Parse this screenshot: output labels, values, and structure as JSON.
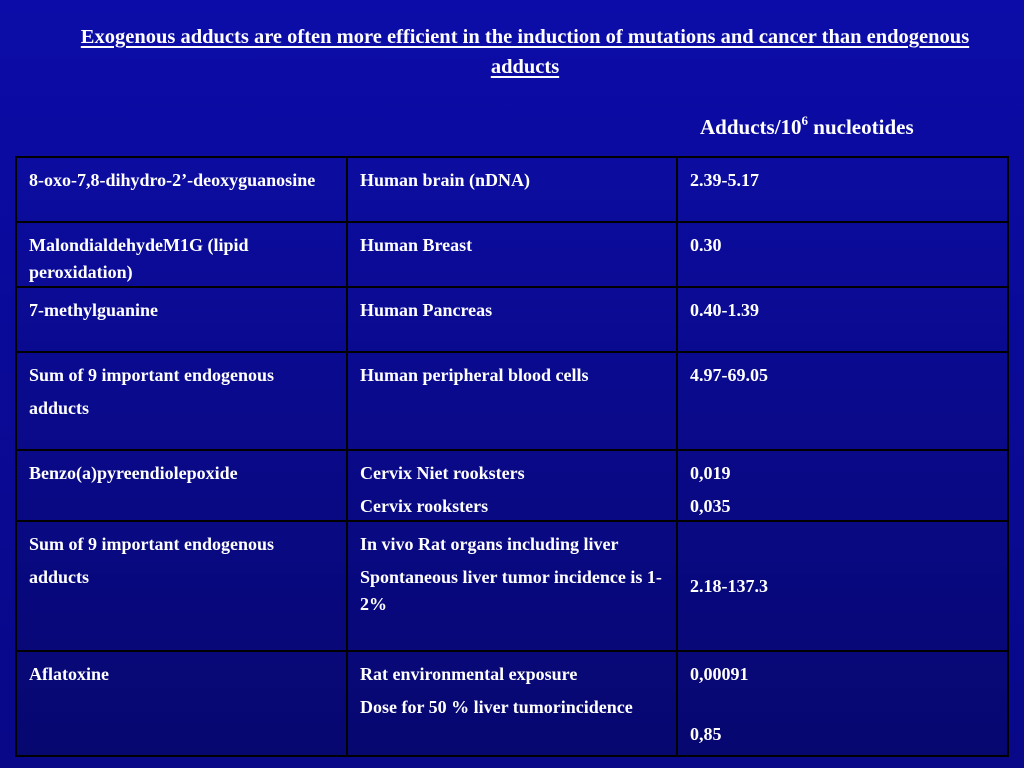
{
  "slide": {
    "title": "Exogenous adducts are often more efficient in the induction of mutations and cancer than endogenous adducts",
    "units_prefix": "Adducts/10",
    "units_exp": "6",
    "units_suffix": " nucleotides"
  },
  "rows": [
    {
      "compound": [
        "8-oxo-7,8-dihydro-2’-deoxyguanosine"
      ],
      "tissue": [
        "Human brain (nDNA)"
      ],
      "value": [
        "2.39-5.17"
      ]
    },
    {
      "compound": [
        "MalondialdehydeM1G (lipid peroxidation)"
      ],
      "tissue": [
        "Human Breast"
      ],
      "value": [
        "0.30"
      ]
    },
    {
      "compound": [
        "7-methylguanine"
      ],
      "tissue": [
        "Human Pancreas"
      ],
      "value": [
        "0.40-1.39"
      ]
    },
    {
      "compound": [
        "Sum of 9 important endogenous",
        "adducts"
      ],
      "tissue": [
        "Human peripheral blood cells"
      ],
      "value": [
        "4.97-69.05"
      ]
    },
    {
      "compound": [
        "Benzo(a)pyreendiolepoxide"
      ],
      "tissue": [
        "Cervix Niet rooksters",
        "Cervix rooksters"
      ],
      "value": [
        "0,019",
        "0,035"
      ]
    },
    {
      "compound": [
        "Sum of 9 important endogenous",
        "adducts"
      ],
      "tissue": [
        "In vivo Rat organs including liver",
        "Spontaneous liver tumor incidence is 1-2%"
      ],
      "value": [
        "2.18-137.3"
      ]
    },
    {
      "compound": [
        "Aflatoxine"
      ],
      "tissue": [
        "Rat environmental exposure",
        "Dose for 50 % liver tumorincidence"
      ],
      "value": [
        "0,00091",
        "0,85"
      ]
    }
  ]
}
